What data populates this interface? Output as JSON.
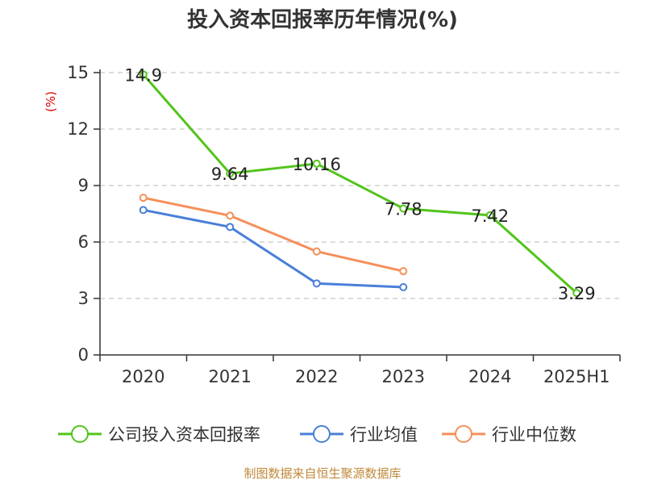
{
  "chart_data": {
    "type": "line",
    "title": "投入资本回报率历年情况(%)",
    "ylabel": "(%)",
    "xlabel": "",
    "categories": [
      "2020",
      "2021",
      "2022",
      "2023",
      "2024",
      "2025H1"
    ],
    "ylim": [
      0,
      15
    ],
    "yticks": [
      0,
      3,
      6,
      9,
      12,
      15
    ],
    "grid": "horizontal-dashed",
    "legend_position": "bottom",
    "series": [
      {
        "name": "公司投入资本回报率",
        "color": "#52c41a",
        "values": [
          14.9,
          9.64,
          10.16,
          7.78,
          7.42,
          3.29
        ],
        "labels": [
          "14.9",
          "9.64",
          "10.16",
          "7.78",
          "7.42",
          "3.29"
        ]
      },
      {
        "name": "行业均值",
        "color": "#4a7fd8",
        "values": [
          7.7,
          6.8,
          3.8,
          3.6,
          null,
          null
        ]
      },
      {
        "name": "行业中位数",
        "color": "#f58f5a",
        "values": [
          8.35,
          7.4,
          5.5,
          4.45,
          null,
          null
        ]
      }
    ]
  },
  "source": "制图数据来自恒生聚源数据库"
}
